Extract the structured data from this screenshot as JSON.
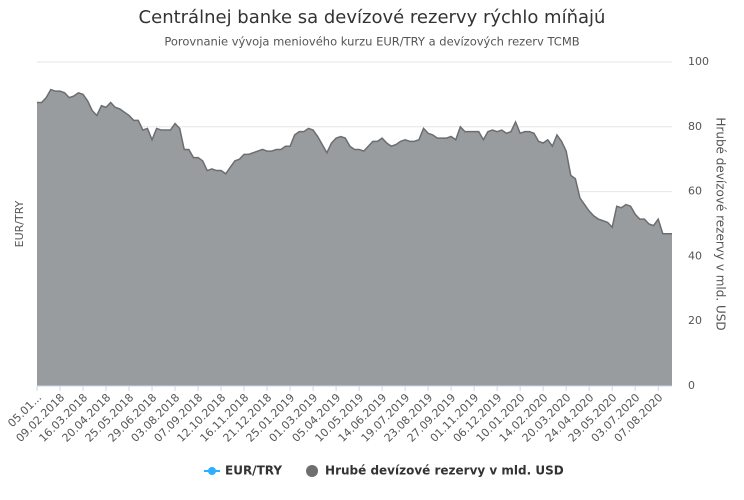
{
  "chart_data": {
    "type": "area",
    "title": "Centrálnej banke sa devízové rezervy rýchlo míňajú",
    "subtitle": "Porovnanie vývoja meniového kurzu EUR/TRY a devízových rezerv TCMB",
    "y_label": "EUR/TRY",
    "y2_label": "Hrubé devízové rezervy v mld. USD",
    "categories": [
      "05.01...",
      null,
      null,
      null,
      null,
      "09.02.2018",
      null,
      null,
      null,
      null,
      "16.03.2018",
      null,
      null,
      null,
      null,
      "20.04.2018",
      null,
      null,
      null,
      null,
      "25.05.2018",
      null,
      null,
      null,
      null,
      "29.06.2018",
      null,
      null,
      null,
      null,
      "03.08.2018",
      null,
      null,
      null,
      null,
      "07.09.2018",
      null,
      null,
      null,
      null,
      "12.10.2018",
      null,
      null,
      null,
      null,
      "16.11.2018",
      null,
      null,
      null,
      null,
      "21.12.2018",
      null,
      null,
      null,
      null,
      "25.01.2019",
      null,
      null,
      null,
      null,
      "01.03.2019",
      null,
      null,
      null,
      null,
      "05.04.2019",
      null,
      null,
      null,
      null,
      "10.05.2019",
      null,
      null,
      null,
      null,
      "14.06.2019",
      null,
      null,
      null,
      null,
      "19.07.2019",
      null,
      null,
      null,
      null,
      "23.08.2019",
      null,
      null,
      null,
      null,
      "27.09.2019",
      null,
      null,
      null,
      null,
      "01.11.2019",
      null,
      null,
      null,
      null,
      "06.12.2019",
      null,
      null,
      null,
      null,
      "10.01.2020",
      null,
      null,
      null,
      null,
      "14.02.2020",
      null,
      null,
      null,
      null,
      "20.03.2020",
      null,
      null,
      null,
      null,
      "24.04.2020",
      null,
      null,
      null,
      null,
      "29.05.2020",
      null,
      null,
      null,
      null,
      "03.07.2020",
      null,
      null,
      null,
      null,
      "07.08.2020",
      null,
      null,
      null
    ],
    "series": [
      {
        "name": "EUR/TRY",
        "color": "#2caffe",
        "values": [
          null,
          null,
          null,
          null,
          null,
          null,
          null,
          null,
          null,
          null,
          null,
          null,
          null,
          null,
          null,
          null,
          null,
          null,
          null,
          null,
          null,
          null,
          null,
          null,
          null,
          null,
          null,
          null,
          null,
          null,
          null,
          null,
          null,
          null,
          null,
          null,
          null,
          null,
          null,
          null,
          null,
          null,
          null,
          null,
          null,
          null,
          null,
          null,
          null,
          null,
          null,
          null,
          null,
          null,
          null,
          null,
          null,
          null,
          null,
          null,
          null,
          null,
          null,
          null,
          null,
          null,
          null,
          null,
          null,
          null,
          null,
          null,
          null,
          null,
          null,
          null,
          null,
          null,
          null,
          null,
          null,
          null,
          null,
          null,
          null,
          null,
          null,
          null,
          null,
          null,
          null,
          null,
          null,
          null,
          null,
          null,
          null,
          null,
          null,
          null,
          null,
          null,
          null,
          null,
          null,
          null,
          null,
          null,
          null,
          null,
          null,
          null,
          null,
          null,
          null,
          null,
          null,
          null,
          null,
          null,
          null,
          null,
          null,
          null,
          null,
          null,
          null,
          null,
          null,
          null,
          null,
          null,
          null,
          null,
          null,
          null,
          null,
          null,
          null
        ]
      },
      {
        "name": "Hrubé devízové rezervy v mld. USD",
        "color": "#999c9f",
        "axis": "y2",
        "values": [
          87.5,
          87.5,
          89,
          91.5,
          91,
          91,
          90.5,
          89,
          89.5,
          90.5,
          90,
          88,
          85,
          83.5,
          86.5,
          86,
          87.5,
          86,
          85.5,
          84.5,
          83.5,
          82,
          82,
          79,
          79.5,
          76,
          79.5,
          79,
          79,
          79,
          81,
          79.5,
          73,
          73,
          70.5,
          70.5,
          69.5,
          66.5,
          67,
          66.5,
          66.5,
          65.5,
          67.5,
          69.5,
          70,
          71.5,
          71.5,
          72,
          72.5,
          73,
          72.5,
          72.5,
          73,
          73,
          74,
          74,
          77.5,
          78.5,
          78.5,
          79.5,
          79,
          77,
          74.5,
          72,
          75,
          76.5,
          77,
          76.5,
          74,
          73,
          73,
          72.5,
          74,
          75.5,
          75.5,
          76.5,
          75,
          74,
          74.5,
          75.5,
          76,
          75.5,
          75.5,
          76,
          79.5,
          78,
          77.5,
          76.5,
          76.5,
          76.5,
          77,
          76,
          80,
          78.5,
          78.5,
          78.5,
          78.5,
          76,
          78.5,
          79,
          78.5,
          79,
          78,
          78.5,
          81.5,
          78,
          78.5,
          78.5,
          78,
          75.5,
          75,
          76,
          74,
          77.5,
          75.5,
          72.5,
          65,
          64,
          58,
          56,
          54,
          52.5,
          51.5,
          51,
          50.5,
          49,
          55.5,
          55,
          56,
          55.5,
          53,
          51.5,
          51.5,
          50,
          49.5,
          51.5,
          47,
          47,
          47
        ]
      }
    ],
    "y2lim": [
      0,
      100
    ],
    "y2ticks": [
      0,
      20,
      40,
      60,
      80,
      100
    ],
    "grid": true
  }
}
